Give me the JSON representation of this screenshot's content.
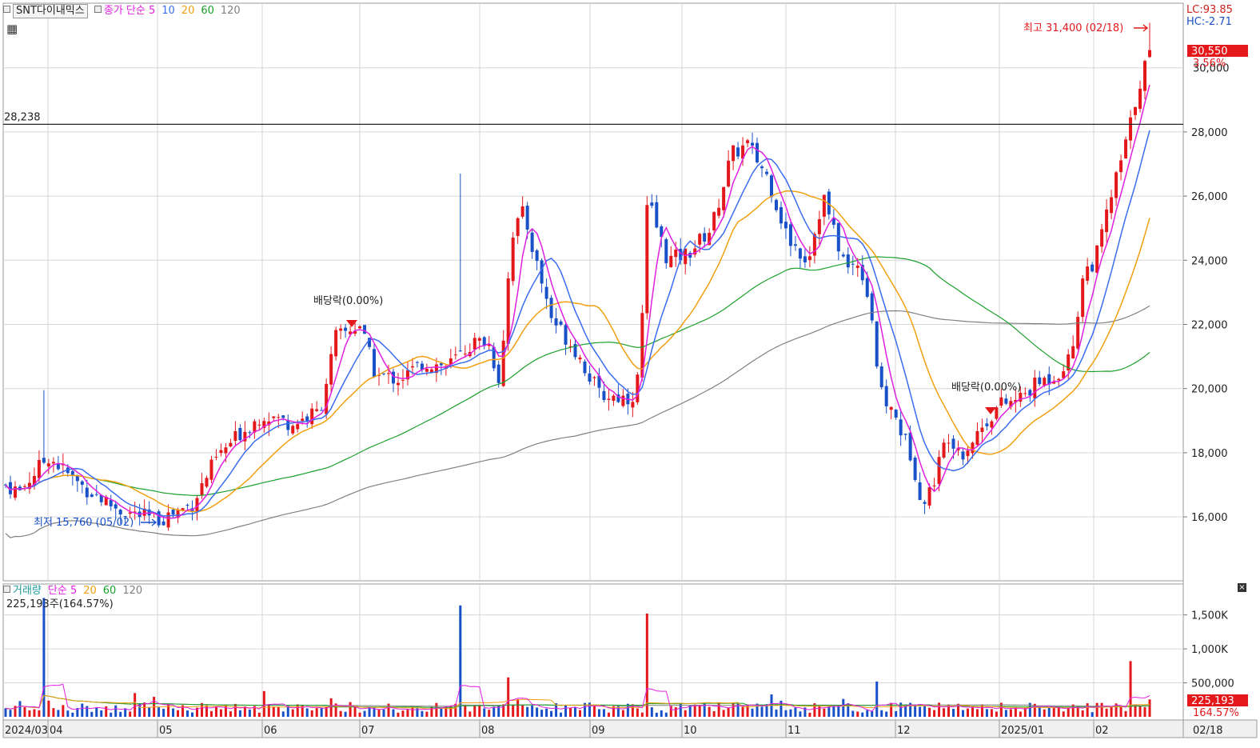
{
  "price_panel": {
    "symbol": "SNT다이내믹스",
    "legend": [
      {
        "label": "종가 단순 5",
        "color": "#e020e0"
      },
      {
        "label": "10",
        "color": "#3a6cf0"
      },
      {
        "label": "20",
        "color": "#f0a010"
      },
      {
        "label": "60",
        "color": "#1aa02a"
      },
      {
        "label": "120",
        "color": "#808080"
      }
    ],
    "lc_label": "LC:93.85",
    "hc_label": "HC:-2.71",
    "high_note": "최고 31,400 (02/18)",
    "low_note": "최저 15,760 (05/02)",
    "ref_line_label": "28,238",
    "ref_line_value": 28238,
    "last_price_label": "30,550",
    "last_change_label": "3.56%",
    "hidden_tick_label": "30,000",
    "dividend_label_1": "배당락(0.00%)",
    "dividend_label_2": "배당락(0.00%)",
    "y_ticks": [
      "28,000",
      "26,000",
      "24,000",
      "22,000",
      "20,000",
      "18,000",
      "16,000"
    ],
    "y_tick_values": [
      28000,
      26000,
      24000,
      22000,
      20000,
      18000,
      16000
    ]
  },
  "volume_panel": {
    "legend": [
      {
        "label": "거래량",
        "color": "#1a9a9a"
      },
      {
        "label": "단순 5",
        "color": "#e020e0"
      },
      {
        "label": "20",
        "color": "#f0a010"
      },
      {
        "label": "60",
        "color": "#1aa02a"
      },
      {
        "label": "120",
        "color": "#808080"
      }
    ],
    "volume_label": "225,193주(164.57%)",
    "last_volume_label": "225,193",
    "last_volume_pct_label": "164.57%",
    "y_ticks": [
      "1,500K",
      "1,000K",
      "500,000"
    ],
    "y_tick_values": [
      1500000,
      1000000,
      500000
    ]
  },
  "x_axis": {
    "labels": [
      "2024/03",
      "04",
      "05",
      "06",
      "07",
      "08",
      "09",
      "10",
      "11",
      "12",
      "2025/01",
      "02"
    ],
    "last_date_label": "02/18"
  },
  "colors": {
    "up": "#e4171b",
    "down": "#1850c8",
    "ma5": "#e020e0",
    "ma10": "#3a6cf0",
    "ma20": "#f0a010",
    "ma60": "#1aa02a",
    "ma120": "#808080",
    "grid": "#d6d6d6"
  },
  "chart_data": {
    "type": "candlestick",
    "period": "2024/03 – 2025/02/18 (daily)",
    "price_range": [
      14000,
      32000
    ],
    "highest": {
      "value": 31400,
      "date": "02/18"
    },
    "lowest": {
      "value": 15760,
      "date": "05/02"
    },
    "anchors": [
      {
        "date": "2024/03",
        "close": 17000
      },
      {
        "date": "04",
        "close": 17900
      },
      {
        "date": "05",
        "close": 15900
      },
      {
        "date": "06",
        "close": 19200
      },
      {
        "date": "07",
        "close": 21800
      },
      {
        "date": "08",
        "close": 25500
      },
      {
        "date": "09",
        "close": 19800
      },
      {
        "date": "10",
        "close": 27500
      },
      {
        "date": "11",
        "close": 24000
      },
      {
        "date": "12",
        "close": 16500
      },
      {
        "date": "2025/01",
        "close": 19500
      },
      {
        "date": "02",
        "close": 23500
      },
      {
        "date": "02/18",
        "close": 30550
      }
    ],
    "volume_range": [
      0,
      1800000
    ]
  }
}
